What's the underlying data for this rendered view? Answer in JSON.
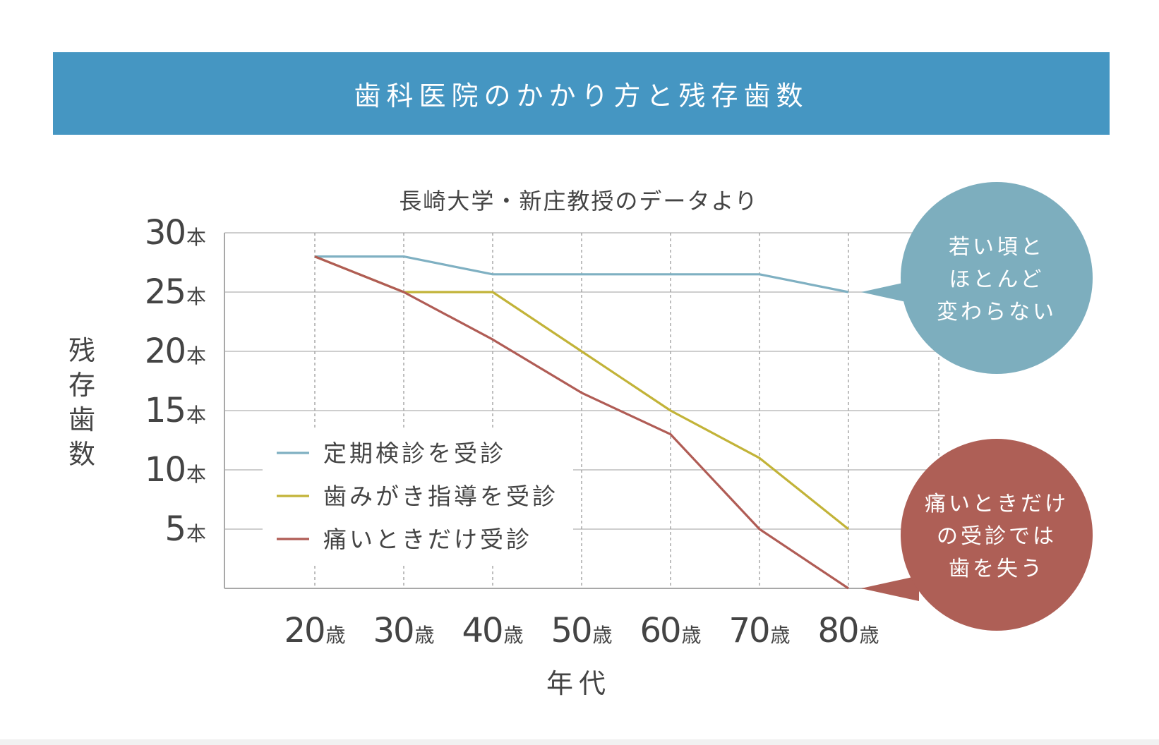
{
  "banner": {
    "title": "歯科医院のかかり方と残存歯数"
  },
  "chart_data": {
    "type": "line",
    "subtitle": "長崎大学・新庄教授のデータより",
    "ylabel": "残存歯数",
    "xlabel": "年代",
    "categories": [
      "20",
      "30",
      "40",
      "50",
      "60",
      "70",
      "80"
    ],
    "x_unit": "歳",
    "yticks": [
      "30",
      "25",
      "20",
      "15",
      "10",
      "5"
    ],
    "y_unit": "本",
    "ylim": [
      0,
      30
    ],
    "grid": true,
    "series": [
      {
        "name": "定期検診を受診",
        "color": "#7fb0c2",
        "values": [
          28,
          28,
          26.5,
          26.5,
          26.5,
          26.5,
          25
        ]
      },
      {
        "name": "歯みがき指導を受診",
        "color": "#c2b338",
        "values": [
          28,
          25,
          25,
          20,
          15,
          11,
          5
        ]
      },
      {
        "name": "痛いときだけ受診",
        "color": "#b05c55",
        "values": [
          28,
          25,
          21,
          16.5,
          13,
          5,
          0
        ]
      }
    ],
    "callouts": [
      {
        "lines": [
          "若い頃と",
          "ほとんど",
          "変わらない"
        ],
        "color": "#7daebe",
        "series_index": 0
      },
      {
        "lines": [
          "痛いときだけ",
          "の受診では",
          "歯を失う"
        ],
        "color": "#ae5f56",
        "series_index": 2
      }
    ],
    "legend_position": "lower-left"
  }
}
